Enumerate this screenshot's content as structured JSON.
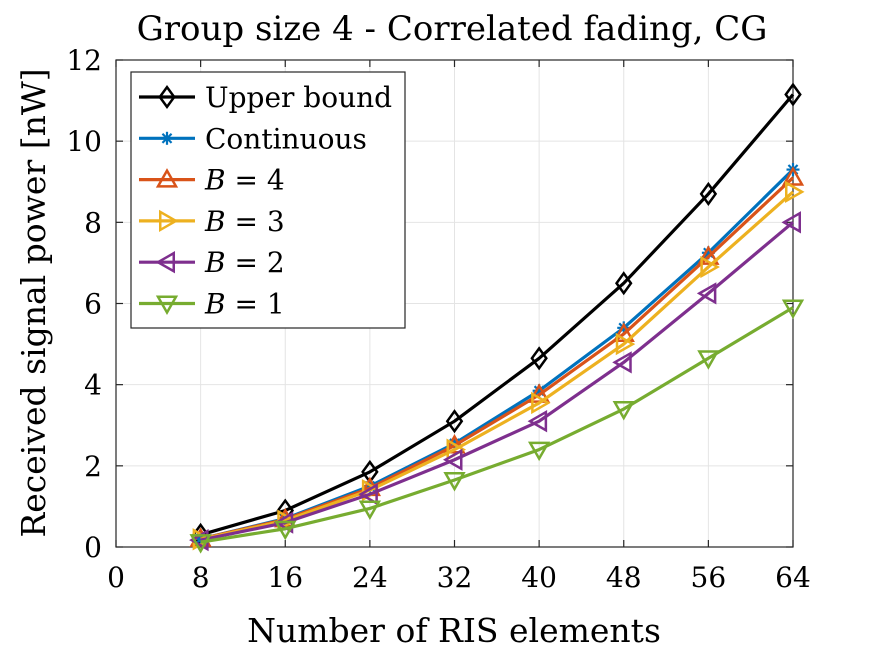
{
  "chart_data": {
    "type": "line",
    "title": "Group size 4 - Correlated fading, CG",
    "xlabel": "Number of RIS elements",
    "ylabel": "Received signal power [nW]",
    "xlim": [
      0,
      64
    ],
    "ylim": [
      0,
      12
    ],
    "xticks": [
      0,
      8,
      16,
      24,
      32,
      40,
      48,
      56,
      64
    ],
    "yticks": [
      0,
      2,
      4,
      6,
      8,
      10,
      12
    ],
    "grid": true,
    "legend_position": "top-left",
    "x": [
      8,
      16,
      24,
      32,
      40,
      48,
      56,
      64
    ],
    "series": [
      {
        "name": "Upper bound",
        "color": "#000000",
        "marker": "diamond",
        "values": [
          0.3,
          0.9,
          1.85,
          3.1,
          4.65,
          6.5,
          8.7,
          11.15
        ]
      },
      {
        "name": "Continuous",
        "color": "#0072BD",
        "marker": "asterisk",
        "values": [
          0.2,
          0.7,
          1.5,
          2.55,
          3.85,
          5.4,
          7.25,
          9.3
        ]
      },
      {
        "name": "B = 4",
        "name_var": "B",
        "name_val": "4",
        "color": "#D95319",
        "marker": "triangle-up",
        "values": [
          0.2,
          0.68,
          1.45,
          2.5,
          3.75,
          5.25,
          7.15,
          9.1
        ]
      },
      {
        "name": "B = 3",
        "name_var": "B",
        "name_val": "3",
        "color": "#EDB120",
        "marker": "triangle-right",
        "values": [
          0.19,
          0.65,
          1.4,
          2.4,
          3.55,
          5.0,
          6.9,
          8.75
        ]
      },
      {
        "name": "B = 2",
        "name_var": "B",
        "name_val": "2",
        "color": "#7E2F8E",
        "marker": "triangle-left",
        "values": [
          0.17,
          0.6,
          1.3,
          2.15,
          3.1,
          4.55,
          6.25,
          8.0
        ]
      },
      {
        "name": "B = 1",
        "name_var": "B",
        "name_val": "1",
        "color": "#77AC30",
        "marker": "triangle-down",
        "values": [
          0.12,
          0.45,
          0.95,
          1.65,
          2.4,
          3.4,
          4.65,
          5.9
        ]
      }
    ]
  }
}
